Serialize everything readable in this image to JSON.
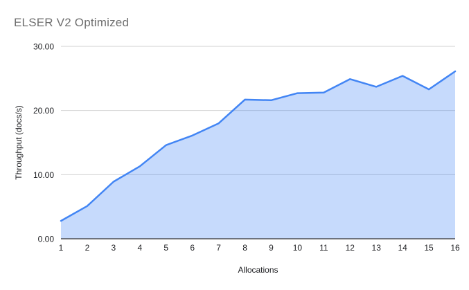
{
  "title": "ELSER V2 Optimized",
  "chart_data": {
    "type": "area",
    "title": "ELSER V2 Optimized",
    "xlabel": "Allocations",
    "ylabel": "Throughput (docs/s)",
    "x": [
      1,
      2,
      3,
      4,
      5,
      6,
      7,
      8,
      9,
      10,
      11,
      12,
      13,
      14,
      15,
      16
    ],
    "values": [
      2.8,
      5.1,
      8.9,
      11.3,
      14.6,
      16.1,
      18.0,
      21.7,
      21.6,
      22.7,
      22.8,
      24.9,
      23.7,
      25.4,
      23.3,
      26.1
    ],
    "ylim": [
      0,
      30
    ],
    "y_ticks": [
      {
        "value": 0,
        "label": "0.00"
      },
      {
        "value": 10,
        "label": "10.00"
      },
      {
        "value": 20,
        "label": "20.00"
      },
      {
        "value": 30,
        "label": "30.00"
      }
    ],
    "grid": true,
    "legend": "none",
    "colors": {
      "line": "#4285f4",
      "fill": "rgba(66,133,244,0.3)",
      "gridline": "#d2d2d2",
      "axis_line": "#333333",
      "tick_text": "#202124",
      "title_text": "#6e6e6e"
    }
  }
}
